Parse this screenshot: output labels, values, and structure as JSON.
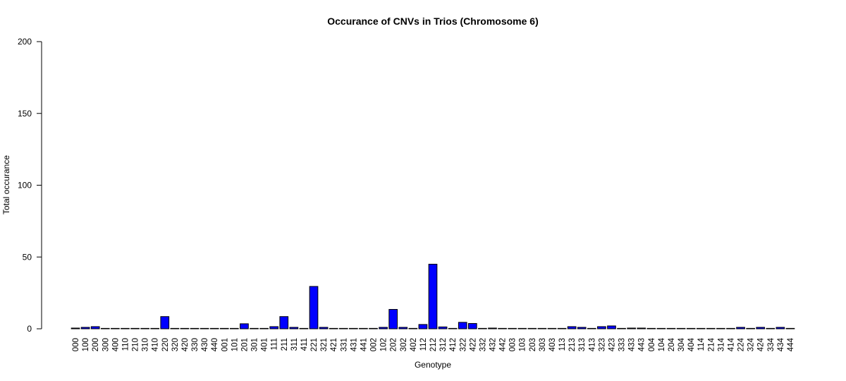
{
  "chart_data": {
    "type": "bar",
    "title": "Occurance of CNVs in Trios (Chromosome 6)",
    "xlabel": "Genotype",
    "ylabel": "Total occurance",
    "ylim": [
      0,
      200
    ],
    "yticks": [
      0,
      50,
      100,
      150,
      200
    ],
    "bar_color": "#0000ff",
    "bar_border": "#000000",
    "grid": false,
    "categories": [
      "000",
      "100",
      "200",
      "300",
      "400",
      "110",
      "210",
      "310",
      "410",
      "220",
      "320",
      "420",
      "330",
      "430",
      "440",
      "001",
      "101",
      "201",
      "301",
      "401",
      "111",
      "211",
      "311",
      "411",
      "221",
      "321",
      "421",
      "331",
      "431",
      "441",
      "002",
      "102",
      "202",
      "302",
      "402",
      "112",
      "212",
      "312",
      "412",
      "322",
      "422",
      "332",
      "432",
      "442",
      "003",
      "103",
      "203",
      "303",
      "403",
      "113",
      "213",
      "313",
      "413",
      "323",
      "423",
      "333",
      "433",
      "443",
      "004",
      "104",
      "204",
      "304",
      "404",
      "114",
      "214",
      "314",
      "414",
      "224",
      "324",
      "424",
      "334",
      "434",
      "444"
    ],
    "values": [
      0.5,
      1,
      1.5,
      0,
      0,
      0,
      0.3,
      0,
      0,
      8.5,
      0,
      0,
      0,
      0,
      0,
      0.3,
      0,
      3.5,
      0.3,
      0,
      1.5,
      8.5,
      1,
      0,
      29.5,
      1,
      0,
      0,
      0,
      0,
      0.3,
      1,
      13.5,
      1,
      0.3,
      3,
      45,
      1.3,
      0,
      4.5,
      3.7,
      0.3,
      0.5,
      0.3,
      0,
      0,
      0,
      0,
      0,
      0,
      1.5,
      1,
      0,
      1.5,
      2,
      0.3,
      0.5,
      0.5,
      0.3,
      0,
      0,
      0,
      0,
      0,
      0,
      0,
      0,
      1,
      0.3,
      1,
      0.3,
      1,
      0.3
    ]
  }
}
